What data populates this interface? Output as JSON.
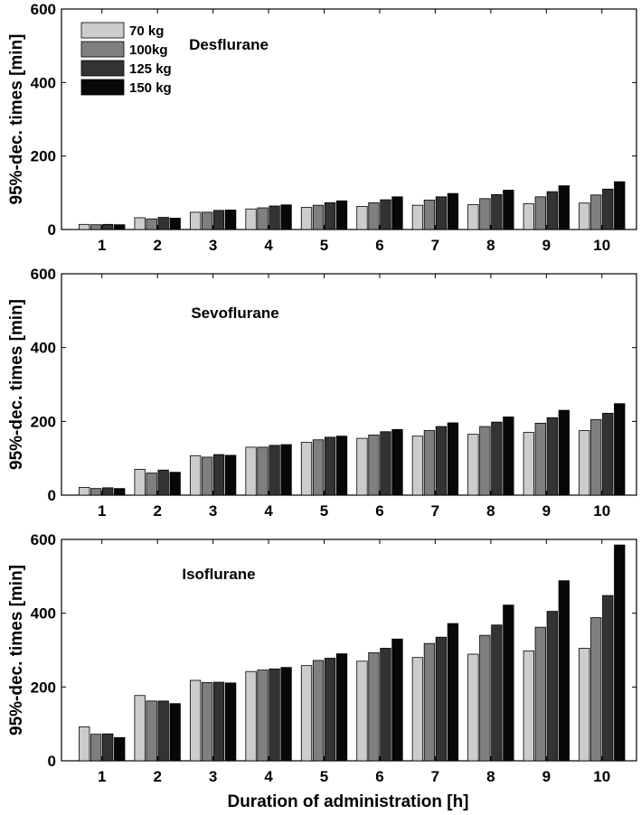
{
  "chart_data": [
    {
      "type": "bar",
      "title": "Desflurane",
      "ylabel": "95%-dec. times [min]",
      "xlabel": "",
      "ylim": [
        0,
        600
      ],
      "yticks": [
        "0",
        "200",
        "400",
        "600"
      ],
      "categories": [
        "1",
        "2",
        "3",
        "4",
        "5",
        "6",
        "7",
        "8",
        "9",
        "10"
      ],
      "series": [
        {
          "name": "70 kg",
          "values": [
            14,
            32,
            47,
            56,
            60,
            63,
            66,
            68,
            70,
            72
          ]
        },
        {
          "name": "100kg",
          "values": [
            13,
            29,
            47,
            59,
            66,
            73,
            80,
            84,
            89,
            94
          ]
        },
        {
          "name": "125 kg",
          "values": [
            14,
            33,
            52,
            64,
            73,
            81,
            89,
            95,
            103,
            110
          ]
        },
        {
          "name": "150 kg",
          "values": [
            13,
            31,
            53,
            67,
            78,
            89,
            98,
            107,
            119,
            130
          ]
        }
      ]
    },
    {
      "type": "bar",
      "title": "Sevoflurane",
      "ylabel": "95%-dec. times [min]",
      "xlabel": "",
      "ylim": [
        0,
        600
      ],
      "yticks": [
        "0",
        "200",
        "400",
        "600"
      ],
      "categories": [
        "1",
        "2",
        "3",
        "4",
        "5",
        "6",
        "7",
        "8",
        "9",
        "10"
      ],
      "series": [
        {
          "name": "70 kg",
          "values": [
            21,
            70,
            107,
            130,
            143,
            154,
            160,
            165,
            170,
            175
          ]
        },
        {
          "name": "100kg",
          "values": [
            18,
            60,
            103,
            130,
            150,
            163,
            175,
            186,
            195,
            205
          ]
        },
        {
          "name": "125 kg",
          "values": [
            20,
            68,
            110,
            135,
            157,
            172,
            186,
            198,
            210,
            222
          ]
        },
        {
          "name": "150 kg",
          "values": [
            18,
            62,
            108,
            137,
            160,
            178,
            196,
            212,
            230,
            248
          ]
        }
      ]
    },
    {
      "type": "bar",
      "title": "Isoflurane",
      "ylabel": "95%-dec. times [min]",
      "xlabel": "Duration of administration [h]",
      "ylim": [
        0,
        600
      ],
      "yticks": [
        "0",
        "200",
        "400",
        "600"
      ],
      "categories": [
        "1",
        "2",
        "3",
        "4",
        "5",
        "6",
        "7",
        "8",
        "9",
        "10"
      ],
      "series": [
        {
          "name": "70 kg",
          "values": [
            92,
            177,
            218,
            242,
            258,
            270,
            280,
            289,
            298,
            305
          ]
        },
        {
          "name": "100kg",
          "values": [
            72,
            162,
            212,
            246,
            272,
            293,
            318,
            340,
            362,
            388
          ]
        },
        {
          "name": "125 kg",
          "values": [
            73,
            162,
            213,
            249,
            278,
            305,
            335,
            368,
            405,
            448
          ]
        },
        {
          "name": "150 kg",
          "values": [
            63,
            155,
            211,
            253,
            290,
            330,
            372,
            422,
            488,
            585
          ]
        }
      ]
    }
  ],
  "legend": {
    "items": [
      "70 kg",
      "100kg",
      "125 kg",
      "150 kg"
    ],
    "placement": "top-left of first panel"
  },
  "colors": {
    "series": [
      "#cccccc",
      "#7f7f7f",
      "#333333",
      "#080808"
    ],
    "axis": "#000000",
    "background": "#ffffff"
  }
}
